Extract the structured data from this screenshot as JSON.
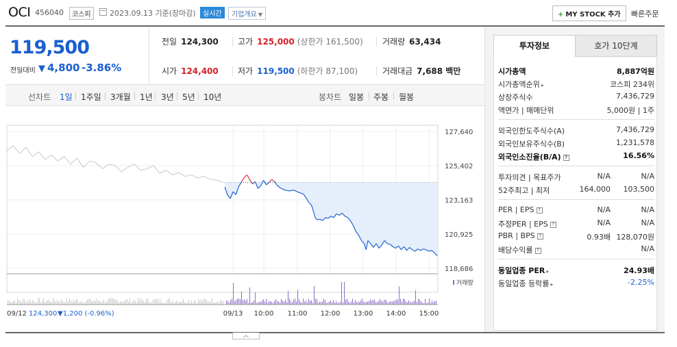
{
  "header": {
    "company": "OCI",
    "code": "456040",
    "market": "코스피",
    "date": "2023.09.13 기준(장마감)",
    "realtime": "실시간",
    "overview": "기업개요",
    "mystock_label": "MY STOCK 추가",
    "quick_order": "빠른주문"
  },
  "price": {
    "current": "119,500",
    "change_label": "전일대비",
    "change_arrow": "▼",
    "change": "4,800",
    "change_pct": "-3.86%"
  },
  "stats": {
    "prev_label": "전일",
    "prev": "124,300",
    "high_label": "고가",
    "high": "125,000",
    "upper_limit": "(상한가 161,500)",
    "volume_label": "거래량",
    "volume": "63,434",
    "open_label": "시가",
    "open": "124,400",
    "low_label": "저가",
    "low": "119,500",
    "lower_limit": "(하한가 87,100)",
    "amount_label": "거래대금",
    "amount": "7,688 백만"
  },
  "period_bar": {
    "line_label": "선차트",
    "line_periods": [
      "1일",
      "1주일",
      "3개월",
      "1년",
      "3년",
      "5년",
      "10년"
    ],
    "active": "1일",
    "candle_label": "봉차트",
    "candle_periods": [
      "일봉",
      "주봉",
      "월봉"
    ]
  },
  "chart_data": {
    "type": "line",
    "prev_close": 124300,
    "ylim": [
      118686,
      127640
    ],
    "y_ticks": [
      "127,640",
      "125,402",
      "123,163",
      "120,925",
      "118,686"
    ],
    "x_ticks": [
      "09/13",
      "10:00",
      "11:00",
      "12:00",
      "13:00",
      "14:00",
      "15:00"
    ],
    "prev_day_label": "09/12",
    "prev_day_close": "124,300",
    "prev_day_change": "▼1,200 (-0.96%)",
    "volume_legend": "거래량",
    "today_series": [
      {
        "t": 0,
        "v": 124000
      },
      {
        "t": 3,
        "v": 123500
      },
      {
        "t": 6,
        "v": 123250
      },
      {
        "t": 9,
        "v": 123700
      },
      {
        "t": 12,
        "v": 123500
      },
      {
        "t": 15,
        "v": 124000
      },
      {
        "t": 18,
        "v": 124350
      },
      {
        "t": 21,
        "v": 124600
      },
      {
        "t": 24,
        "v": 124800
      },
      {
        "t": 27,
        "v": 124500
      },
      {
        "t": 30,
        "v": 124200
      },
      {
        "t": 33,
        "v": 124350
      },
      {
        "t": 36,
        "v": 123900
      },
      {
        "t": 39,
        "v": 124100
      },
      {
        "t": 42,
        "v": 124450
      },
      {
        "t": 45,
        "v": 124150
      },
      {
        "t": 48,
        "v": 124300
      },
      {
        "t": 51,
        "v": 124500
      },
      {
        "t": 54,
        "v": 124350
      },
      {
        "t": 57,
        "v": 124100
      },
      {
        "t": 60,
        "v": 123950
      },
      {
        "t": 65,
        "v": 123800
      },
      {
        "t": 70,
        "v": 123750
      },
      {
        "t": 75,
        "v": 123800
      },
      {
        "t": 80,
        "v": 123650
      },
      {
        "t": 85,
        "v": 123550
      },
      {
        "t": 88,
        "v": 123300
      },
      {
        "t": 91,
        "v": 123000
      },
      {
        "t": 94,
        "v": 122800
      },
      {
        "t": 96,
        "v": 122400
      },
      {
        "t": 98,
        "v": 122000
      },
      {
        "t": 100,
        "v": 121850
      },
      {
        "t": 103,
        "v": 121900
      },
      {
        "t": 106,
        "v": 121800
      },
      {
        "t": 109,
        "v": 122000
      },
      {
        "t": 112,
        "v": 121950
      },
      {
        "t": 115,
        "v": 122100
      },
      {
        "t": 118,
        "v": 122000
      },
      {
        "t": 121,
        "v": 122250
      },
      {
        "t": 124,
        "v": 122150
      },
      {
        "t": 127,
        "v": 122300
      },
      {
        "t": 130,
        "v": 122100
      },
      {
        "t": 133,
        "v": 122000
      },
      {
        "t": 136,
        "v": 121800
      },
      {
        "t": 139,
        "v": 121500
      },
      {
        "t": 142,
        "v": 121100
      },
      {
        "t": 145,
        "v": 120850
      },
      {
        "t": 148,
        "v": 120500
      },
      {
        "t": 151,
        "v": 120300
      },
      {
        "t": 153,
        "v": 119900
      },
      {
        "t": 155,
        "v": 120500
      },
      {
        "t": 158,
        "v": 120300
      },
      {
        "t": 161,
        "v": 120050
      },
      {
        "t": 164,
        "v": 120300
      },
      {
        "t": 167,
        "v": 120000
      },
      {
        "t": 170,
        "v": 120200
      },
      {
        "t": 173,
        "v": 120500
      },
      {
        "t": 176,
        "v": 120300
      },
      {
        "t": 179,
        "v": 120250
      },
      {
        "t": 182,
        "v": 120100
      },
      {
        "t": 185,
        "v": 120000
      },
      {
        "t": 188,
        "v": 120150
      },
      {
        "t": 191,
        "v": 119900
      },
      {
        "t": 194,
        "v": 120100
      },
      {
        "t": 197,
        "v": 119850
      },
      {
        "t": 200,
        "v": 120050
      },
      {
        "t": 203,
        "v": 119900
      },
      {
        "t": 206,
        "v": 119800
      },
      {
        "t": 209,
        "v": 119950
      },
      {
        "t": 212,
        "v": 119850
      },
      {
        "t": 215,
        "v": 119950
      },
      {
        "t": 218,
        "v": 119900
      },
      {
        "t": 221,
        "v": 119800
      },
      {
        "t": 224,
        "v": 119850
      },
      {
        "t": 227,
        "v": 119700
      },
      {
        "t": 230,
        "v": 119500
      }
    ],
    "prev_day_series": [
      126400,
      126700,
      126200,
      126600,
      126000,
      126300,
      125800,
      126100,
      125700,
      126000,
      125500,
      125900,
      125300,
      125700,
      125600,
      125200,
      125500,
      125400,
      125000,
      125300,
      125500,
      125100,
      125200,
      125400,
      124900,
      125100,
      124800,
      124950,
      124700,
      124800,
      124600,
      124700,
      124500,
      124450,
      124300
    ]
  },
  "investment": {
    "tab_info": "투자정보",
    "tab_orderbook": "호가 10단계",
    "rows1": [
      {
        "label": "시가총액",
        "value": "8,887억원",
        "bold": true
      },
      {
        "label": "시가총액순위",
        "value": "코스피 234위"
      },
      {
        "label": "상장주식수",
        "value": "7,436,729"
      },
      {
        "label": "액면가 | 매매단위",
        "value": "5,000원 | 1주"
      }
    ],
    "rows2": [
      {
        "label": "외국인한도주식수(A)",
        "value": "7,436,729"
      },
      {
        "label": "외국인보유주식수(B)",
        "value": "1,231,578"
      },
      {
        "label": "외국인소진율(B/A)",
        "value": "16.56%",
        "bold": true
      }
    ],
    "rows3": [
      {
        "label": "투자의견 | 목표주가",
        "v1": "N/A",
        "v2": "N/A"
      },
      {
        "label": "52주최고 | 최저",
        "v1": "164,000",
        "v2": "103,500"
      }
    ],
    "rows4": [
      {
        "label": "PER | EPS",
        "v1": "N/A",
        "v2": "N/A"
      },
      {
        "label": "추정PER | EPS",
        "v1": "N/A",
        "v2": "N/A"
      },
      {
        "label": "PBR | BPS",
        "v1": "0.93배",
        "v2": "128,070원"
      },
      {
        "label": "배당수익률",
        "v1": "",
        "v2": "N/A"
      }
    ],
    "rows5": [
      {
        "label": "동일업종 PER",
        "value": "24.93배",
        "bold": true
      },
      {
        "label": "동일업종 등락률",
        "value": "-2.25%",
        "blue": true
      }
    ]
  }
}
